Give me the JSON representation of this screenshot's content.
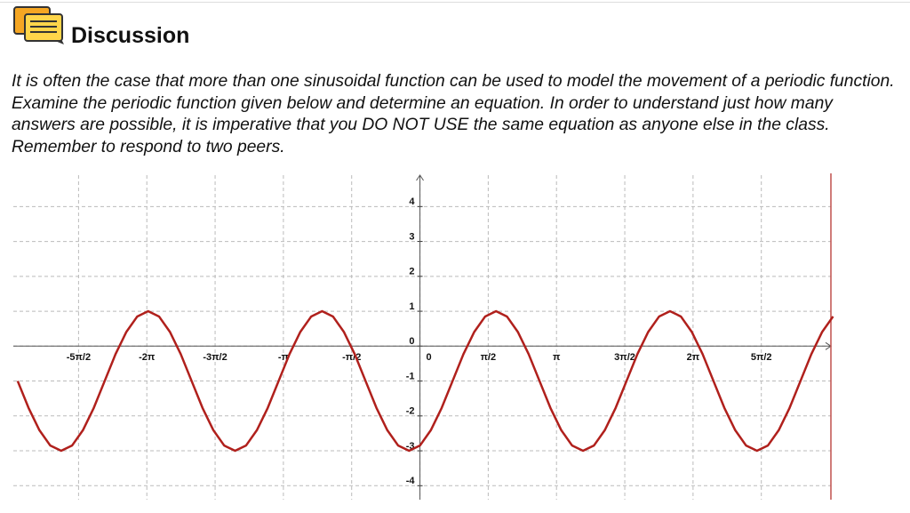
{
  "header": {
    "title": "Discussion"
  },
  "body": {
    "text": "It is often the case that more than one sinusoidal function can be used to model the movement of a periodic function. Examine the periodic function given below and determine an equation. In order to understand just how many answers are possible, it is imperative that you DO NOT USE the same equation as anyone else in the class. Remember to respond to two peers."
  },
  "chart_data": {
    "type": "line",
    "color": "#b0201c",
    "grid": true,
    "xlim": [
      -9.35,
      9.45
    ],
    "ylim": [
      -4.4,
      4.9
    ],
    "xticks": [
      {
        "value": -7.85,
        "label": "-5π/2"
      },
      {
        "value": -6.28,
        "label": "-2π"
      },
      {
        "value": -4.71,
        "label": "-3π/2"
      },
      {
        "value": -3.14,
        "label": "-π"
      },
      {
        "value": -1.57,
        "label": "-π/2"
      },
      0,
      {
        "value": 1.57,
        "label": "π/2"
      },
      {
        "value": 3.14,
        "label": "π"
      },
      {
        "value": 4.71,
        "label": "3π/2"
      },
      {
        "value": 6.28,
        "label": "2π"
      },
      {
        "value": 7.85,
        "label": "5π/2"
      }
    ],
    "yticks": [
      4,
      3,
      2,
      1,
      0,
      -1,
      -2,
      -3,
      -4
    ],
    "x": [
      -9.25,
      -9,
      -8.75,
      -8.5,
      -8.25,
      -8,
      -7.75,
      -7.5,
      -7.25,
      -7,
      -6.75,
      -6.5,
      -6.25,
      -6,
      -5.75,
      -5.5,
      -5.25,
      -5,
      -4.75,
      -4.5,
      -4.25,
      -4,
      -3.75,
      -3.5,
      -3.25,
      -3,
      -2.75,
      -2.5,
      -2.25,
      -2,
      -1.75,
      -1.5,
      -1.25,
      -1,
      -0.75,
      -0.5,
      -0.25,
      0,
      0.25,
      0.5,
      0.75,
      1,
      1.25,
      1.5,
      1.75,
      2,
      2.25,
      2.5,
      2.75,
      3,
      3.25,
      3.5,
      3.75,
      4,
      4.25,
      4.5,
      4.75,
      5,
      5.25,
      5.5,
      5.75,
      6,
      6.25,
      6.5,
      6.75,
      7,
      7.25,
      7.5,
      7.75,
      8,
      8.25,
      8.5,
      8.75,
      9,
      9.25,
      9.5
    ],
    "values": [
      -1,
      -1.77,
      -2.41,
      -2.85,
      -3,
      -2.85,
      -2.41,
      -1.77,
      -1,
      -0.23,
      0.41,
      0.85,
      1,
      0.85,
      0.41,
      -0.23,
      -1,
      -1.77,
      -2.41,
      -2.85,
      -3,
      -2.85,
      -2.41,
      -1.77,
      -1,
      -0.23,
      0.41,
      0.85,
      1,
      0.85,
      0.41,
      -0.23,
      -1,
      -1.77,
      -2.41,
      -2.85,
      -3,
      -2.85,
      -2.41,
      -1.77,
      -1,
      -0.23,
      0.41,
      0.85,
      1,
      0.85,
      0.41,
      -0.23,
      -1,
      -1.77,
      -2.41,
      -2.85,
      -3,
      -2.85,
      -2.41,
      -1.77,
      -1,
      -0.23,
      0.41,
      0.85,
      1,
      0.85,
      0.41,
      -0.23,
      -1,
      -1.77,
      -2.41,
      -2.85,
      -3,
      -2.85,
      -2.41,
      -1.77,
      -1,
      -0.23,
      0.41,
      0.85
    ]
  }
}
